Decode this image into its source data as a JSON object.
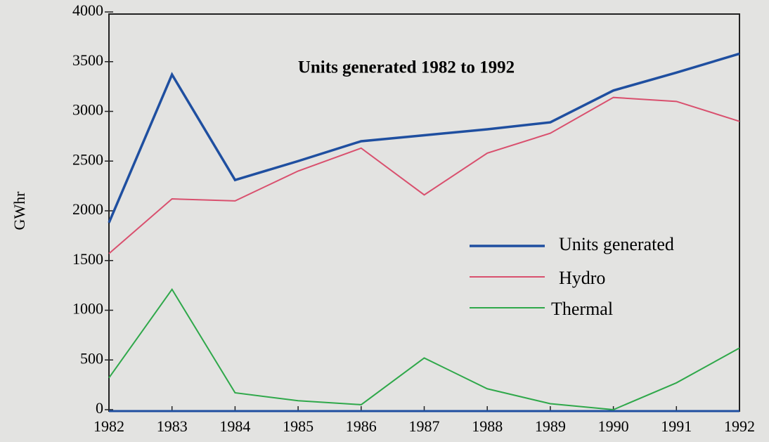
{
  "chart_data": {
    "type": "line",
    "title": "Units generated 1982 to 1992",
    "y_label": "GWhr",
    "x": [
      1982,
      1983,
      1984,
      1985,
      1986,
      1987,
      1988,
      1989,
      1990,
      1991,
      1992
    ],
    "series": [
      {
        "name": "Units generated",
        "color": "#1f4fa0",
        "values": [
          1880,
          3370,
          2310,
          2500,
          2700,
          2760,
          2820,
          2890,
          3210,
          3390,
          3580
        ]
      },
      {
        "name": "Hydro",
        "color": "#d9506e",
        "values": [
          1570,
          2120,
          2100,
          2400,
          2630,
          2160,
          2580,
          2780,
          3140,
          3100,
          2900
        ]
      },
      {
        "name": "Thermal",
        "color": "#2fa84a",
        "values": [
          320,
          1210,
          170,
          90,
          50,
          520,
          210,
          60,
          0,
          270,
          620
        ]
      }
    ],
    "xlim": [
      1982,
      1992
    ],
    "xticks": [
      1982,
      1983,
      1984,
      1985,
      1986,
      1987,
      1988,
      1989,
      1990,
      1991,
      1992
    ],
    "ylim": [
      0,
      4000
    ],
    "yticks": [
      0,
      500,
      1000,
      1500,
      2000,
      2500,
      3000,
      3500,
      4000
    ]
  }
}
